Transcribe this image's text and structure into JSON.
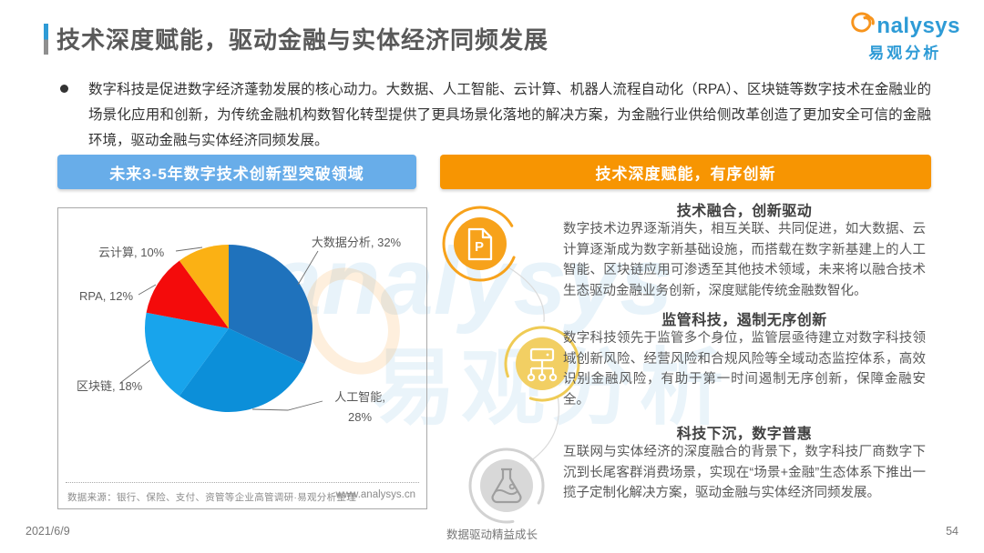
{
  "page": {
    "title": "技术深度赋能，驱动金融与实体经济同频发展",
    "logo": {
      "brand_swirl_letter": "a",
      "brand_text": "nalysys",
      "brand_cn": "易观分析"
    },
    "bullet_text": "数字科技是促进数字经济蓬勃发展的核心动力。大数据、人工智能、云计算、机器人流程自动化（RPA）、区块链等数字技术在金融业的场景化应用和创新，为传统金融机构数智化转型提供了更具场景化落地的解决方案，为金融行业供给侧改革创造了更加安全可信的金融环境，驱动金融与实体经济同频发展。",
    "watermark": {
      "latin": "analysys",
      "cn": "易观分析"
    },
    "footer": {
      "date": "2021/6/9",
      "slogan": "数据驱动精益成长",
      "page_number": "54"
    }
  },
  "left_panel": {
    "header": "未来3-5年数字技术创新型突破领域",
    "source": "数据来源：银行、保险、支付、资管等企业高管调研·易观分析整理",
    "website": "www.analysys.cn"
  },
  "right_panel": {
    "header": "技术深度赋能，有序创新",
    "sections": [
      {
        "icon": "document-p-icon",
        "title": "技术融合，创新驱动",
        "body": "数字技术边界逐渐消失，相互关联、共同促进，如大数据、云计算逐渐成为数字新基础设施，而搭载在数字新基建上的人工智能、区块链应用可渗透至其他技术领域，未来将以融合技术生态驱动金融业务创新，深度赋能传统金融数智化。"
      },
      {
        "icon": "network-icon",
        "title": "监管科技，遏制无序创新",
        "body": "数字科技领先于监管多个身位，监管层亟待建立对数字科技领域创新风险、经营风险和合规风险等全域动态监控体系，高效识别金融风险，有助于第一时间遏制无序创新，保障金融安全。"
      },
      {
        "icon": "flask-icon",
        "title": "科技下沉，数字普惠",
        "body": "互联网与实体经济的深度融合的背景下，数字科技厂商数字下沉到长尾客群消费场景，实现在“场景+金融”生态体系下推出一揽子定制化解决方案，驱动金融与实体经济同频发展。"
      }
    ]
  },
  "chart_data": {
    "type": "pie",
    "title": "未来3-5年数字技术创新型突破领域",
    "labels": [
      "大数据分析",
      "人工智能",
      "区块链",
      "RPA",
      "云计算"
    ],
    "values": [
      32,
      28,
      18,
      12,
      10
    ],
    "unit": "%",
    "colors": [
      "#1F72BC",
      "#0C8FD9",
      "#18A4EC",
      "#F40B0B",
      "#FBB114"
    ],
    "label_texts": [
      "大数据分析, 32%",
      "人工智能, 28%",
      "区块链, 18%",
      "RPA, 12%",
      "云计算, 10%"
    ],
    "start_angle_deg": 0,
    "direction": "clockwise",
    "legend_position": "labels-with-leader-lines"
  }
}
